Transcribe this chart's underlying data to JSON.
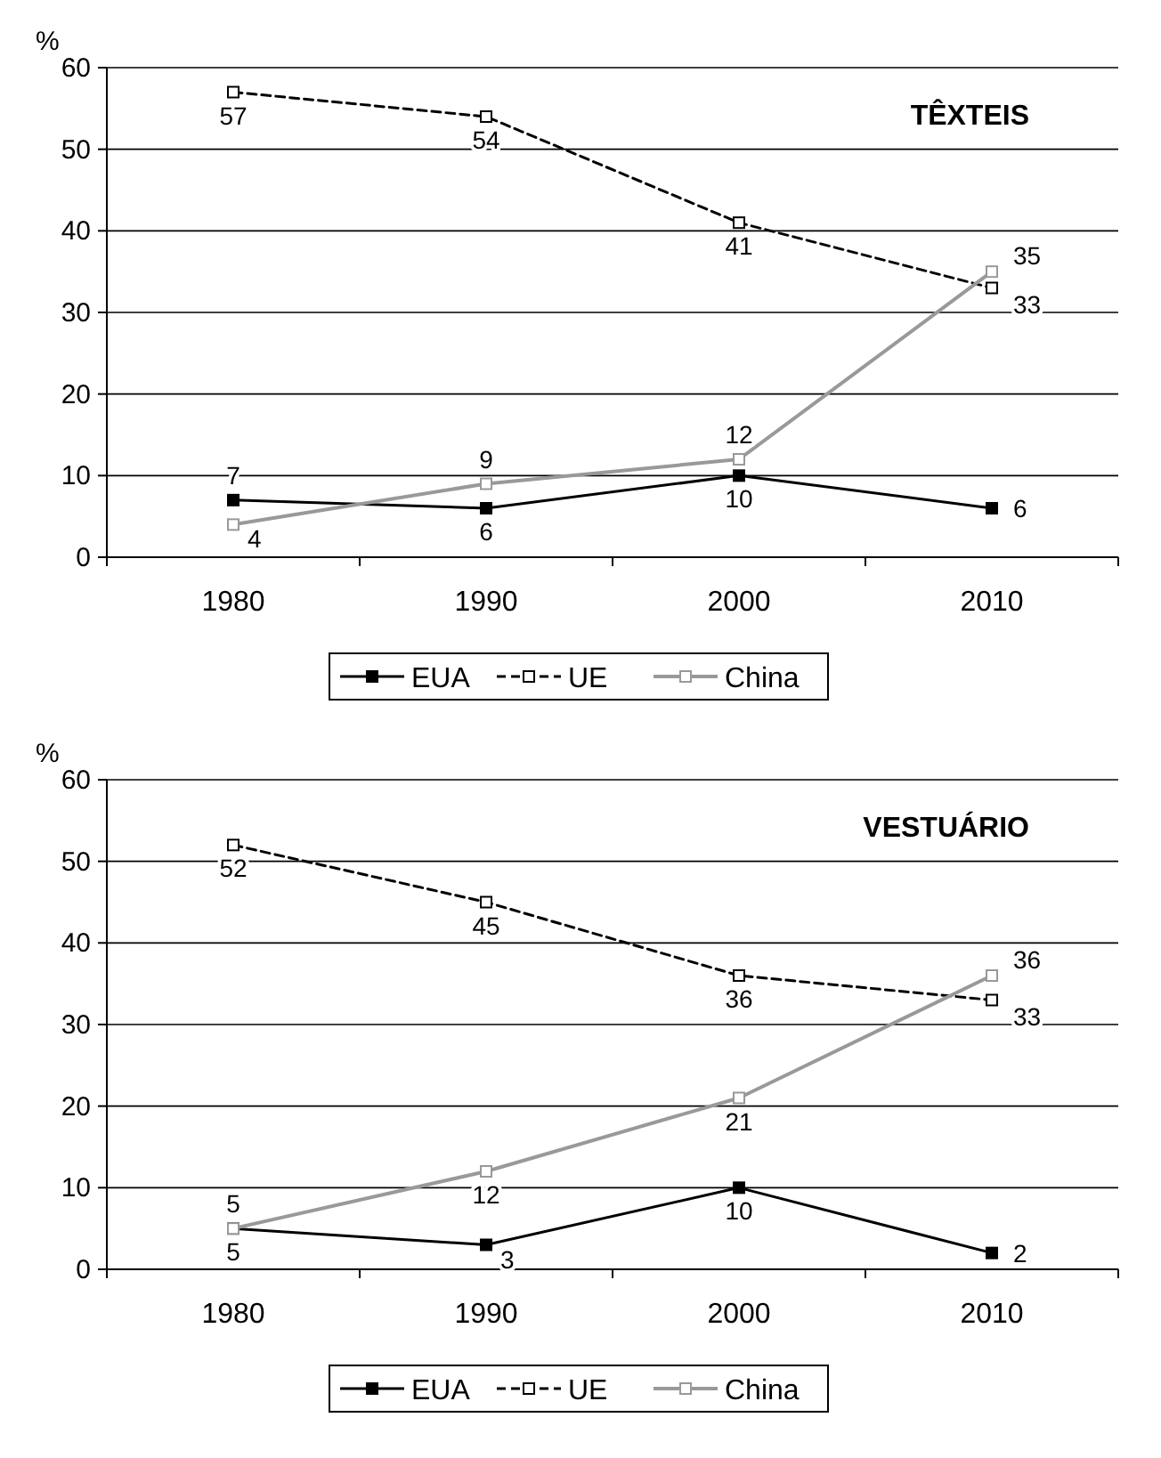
{
  "chart_data": [
    {
      "type": "line",
      "title": "TÊXTEIS",
      "ylabel": "%",
      "categories": [
        "1980",
        "1990",
        "2000",
        "2010"
      ],
      "ylim": [
        0,
        60
      ],
      "yticks": [
        0,
        10,
        20,
        30,
        40,
        50,
        60
      ],
      "grid": "y",
      "legend": "bottom",
      "data_labels": true,
      "series": [
        {
          "name": "EUA",
          "color": "#000000",
          "values": [
            7,
            6,
            10,
            6
          ],
          "marker": "square",
          "line_style": "solid"
        },
        {
          "name": "UE",
          "color": "#000000",
          "values": [
            57,
            54,
            41,
            33
          ],
          "marker": "square",
          "line_style": "dashed"
        },
        {
          "name": "China",
          "color": "#999999",
          "values": [
            4,
            9,
            12,
            35
          ],
          "marker": "square",
          "line_style": "solid"
        }
      ]
    },
    {
      "type": "line",
      "title": "VESTUÁRIO",
      "ylabel": "%",
      "categories": [
        "1980",
        "1990",
        "2000",
        "2010"
      ],
      "ylim": [
        0,
        60
      ],
      "yticks": [
        0,
        10,
        20,
        30,
        40,
        50,
        60
      ],
      "grid": "y",
      "legend": "bottom",
      "data_labels": true,
      "series": [
        {
          "name": "EUA",
          "color": "#000000",
          "values": [
            5,
            3,
            10,
            2
          ],
          "marker": "square",
          "line_style": "solid"
        },
        {
          "name": "UE",
          "color": "#000000",
          "values": [
            52,
            45,
            36,
            33
          ],
          "marker": "square",
          "line_style": "dashed"
        },
        {
          "name": "China",
          "color": "#999999",
          "values": [
            5,
            12,
            21,
            36
          ],
          "marker": "square",
          "line_style": "solid"
        }
      ]
    }
  ]
}
